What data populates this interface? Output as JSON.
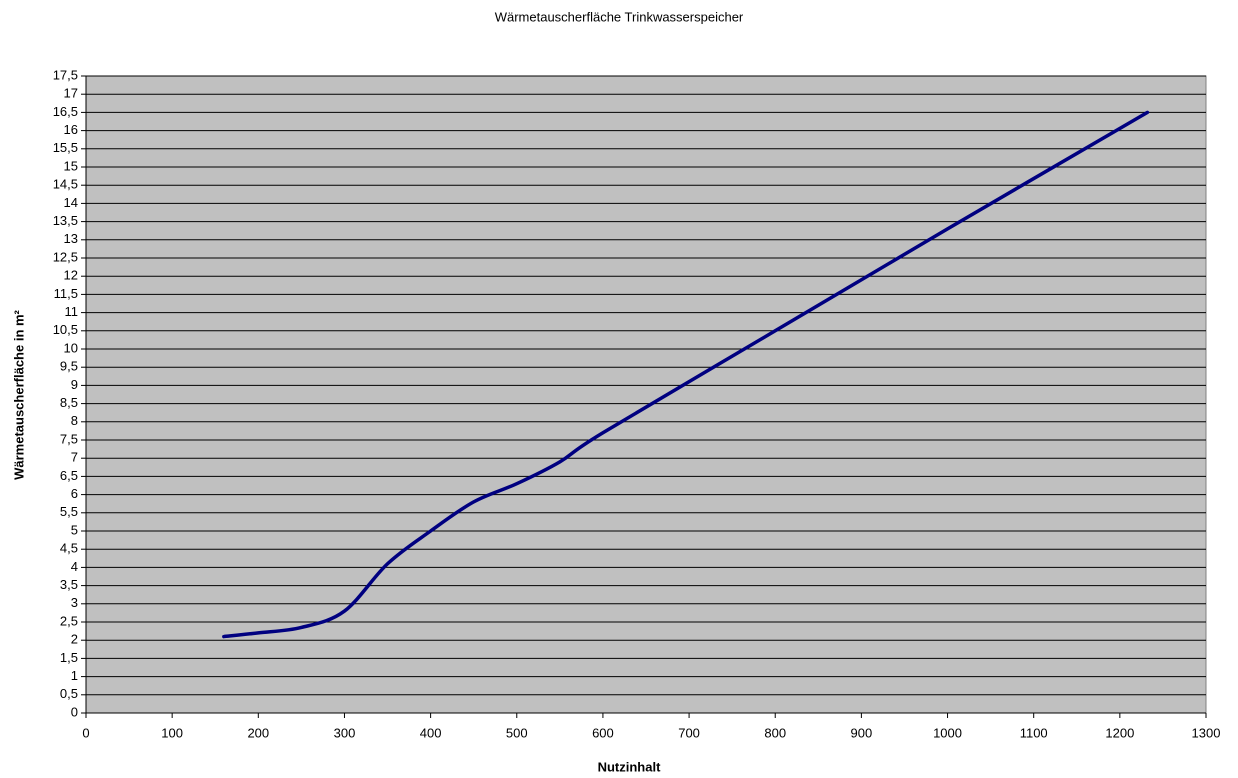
{
  "chart_data": {
    "type": "line",
    "title": "Wärmetauscherfläche Trinkwasserspeicher",
    "xlabel": "Nutzinhalt",
    "ylabel": "Wärmetauscherfläche in m²",
    "x": [
      160,
      200,
      250,
      300,
      350,
      400,
      450,
      500,
      550,
      600,
      800,
      1000,
      1232
    ],
    "series": [
      {
        "name": "Wärmetauscherfläche",
        "color": "#000080",
        "values": [
          2.1,
          2.2,
          2.35,
          2.8,
          4.1,
          5.0,
          5.8,
          6.3,
          6.9,
          7.7,
          10.5,
          13.3,
          16.5
        ]
      }
    ],
    "xlim": [
      0,
      1300
    ],
    "xticks": [
      0,
      100,
      200,
      300,
      400,
      500,
      600,
      700,
      800,
      900,
      1000,
      1100,
      1200,
      1300
    ],
    "ylim": [
      0,
      17.5
    ],
    "yticks": [
      0,
      {
        "value": 0.5,
        "label": "0,5"
      },
      1,
      {
        "value": 1.5,
        "label": "1,5"
      },
      2,
      {
        "value": 2.5,
        "label": "2,5"
      },
      3,
      {
        "value": 3.5,
        "label": "3,5"
      },
      4,
      {
        "value": 4.5,
        "label": "4,5"
      },
      5,
      {
        "value": 5.5,
        "label": "5,5"
      },
      6,
      {
        "value": 6.5,
        "label": "6,5"
      },
      7,
      {
        "value": 7.5,
        "label": "7,5"
      },
      8,
      {
        "value": 8.5,
        "label": "8,5"
      },
      9,
      {
        "value": 9.5,
        "label": "9,5"
      },
      10,
      {
        "value": 10.5,
        "label": "10,5"
      },
      11,
      {
        "value": 11.5,
        "label": "11,5"
      },
      12,
      {
        "value": 12.5,
        "label": "12,5"
      },
      13,
      {
        "value": 13.5,
        "label": "13,5"
      },
      14,
      {
        "value": 14.5,
        "label": "14,5"
      },
      15,
      {
        "value": 15.5,
        "label": "15,5"
      },
      16,
      {
        "value": 16.5,
        "label": "16,5"
      },
      17,
      {
        "value": 17.5,
        "label": "17,5"
      }
    ],
    "grid": true,
    "background": "#c0c0c0"
  }
}
